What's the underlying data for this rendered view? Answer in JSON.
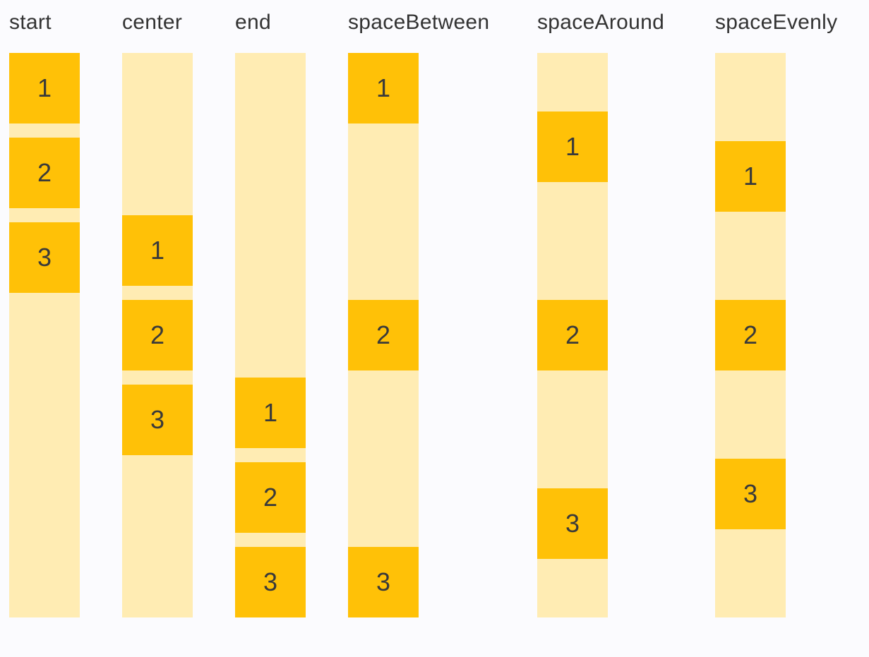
{
  "palette": {
    "background": "#FBFBFE",
    "track": "#FFECB3",
    "item": "#FFC107",
    "label_color": "#333333",
    "digit_color": "#3A3A3A"
  },
  "columns": [
    {
      "label": "start",
      "justify": "start",
      "items": [
        "1",
        "2",
        "3"
      ]
    },
    {
      "label": "center",
      "justify": "center",
      "items": [
        "1",
        "2",
        "3"
      ]
    },
    {
      "label": "end",
      "justify": "end",
      "items": [
        "1",
        "2",
        "3"
      ]
    },
    {
      "label": "spaceBetween",
      "justify": "spaceBetween",
      "items": [
        "1",
        "2",
        "3"
      ]
    },
    {
      "label": "spaceAround",
      "justify": "spaceAround",
      "items": [
        "1",
        "2",
        "3"
      ]
    },
    {
      "label": "spaceEvenly",
      "justify": "spaceEvenly",
      "items": [
        "1",
        "2",
        "3"
      ]
    }
  ]
}
